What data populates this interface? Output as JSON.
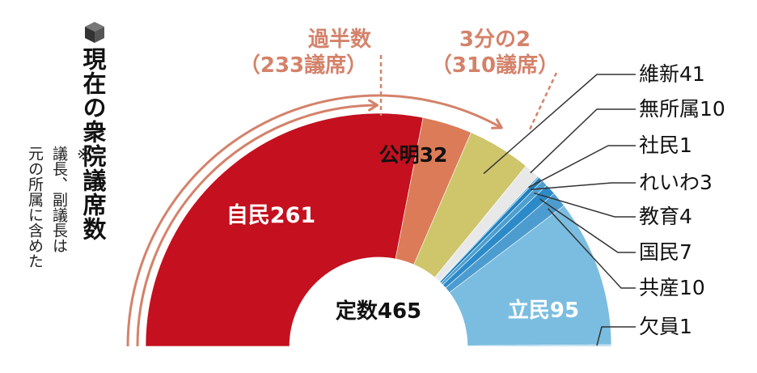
{
  "title": "現在の衆院議席数",
  "note_mark": "※",
  "note_lines": [
    "議長、副議長は",
    "元の所属に含めた"
  ],
  "annotations": {
    "majority": {
      "line1": "過半数",
      "line2": "（233議席）",
      "seat": 233
    },
    "two_thirds": {
      "line1": "3分の2",
      "line2": "（310議席）",
      "seat": 310
    }
  },
  "total_label": "定数465",
  "colors": {
    "ldp": "#c4101f",
    "komeito": "#dc7b57",
    "ishin": "#cfc56b",
    "independent": "#e8e8e8",
    "sdp": "#5fa8d3",
    "reiwa": "#1f80bf",
    "kyoiku": "#4e9fd0",
    "dpfp": "#2d8ac8",
    "jcp": "#4d9ccf",
    "cdp": "#7bbde0",
    "vacant": "#9ccfe9",
    "arrow": "#d4826a",
    "leader": "#333333"
  },
  "chart_data": {
    "type": "pie",
    "subtype": "parliament-semicircle",
    "total_seats": 465,
    "series": [
      {
        "name": "自民",
        "value": 261,
        "label": "自民261",
        "color_key": "ldp"
      },
      {
        "name": "公明",
        "value": 32,
        "label": "公明32",
        "color_key": "komeito"
      },
      {
        "name": "維新",
        "value": 41,
        "label": "維新41",
        "color_key": "ishin"
      },
      {
        "name": "無所属",
        "value": 10,
        "label": "無所属10",
        "color_key": "independent"
      },
      {
        "name": "社民",
        "value": 1,
        "label": "社民1",
        "color_key": "sdp"
      },
      {
        "name": "れいわ",
        "value": 3,
        "label": "れいわ3",
        "color_key": "reiwa"
      },
      {
        "name": "教育",
        "value": 4,
        "label": "教育4",
        "color_key": "kyoiku"
      },
      {
        "name": "国民",
        "value": 7,
        "label": "国民7",
        "color_key": "dpfp"
      },
      {
        "name": "共産",
        "value": 10,
        "label": "共産10",
        "color_key": "jcp"
      },
      {
        "name": "立民",
        "value": 95,
        "label": "立民95",
        "color_key": "cdp"
      },
      {
        "name": "欠員",
        "value": 1,
        "label": "欠員1",
        "color_key": "vacant"
      }
    ]
  }
}
